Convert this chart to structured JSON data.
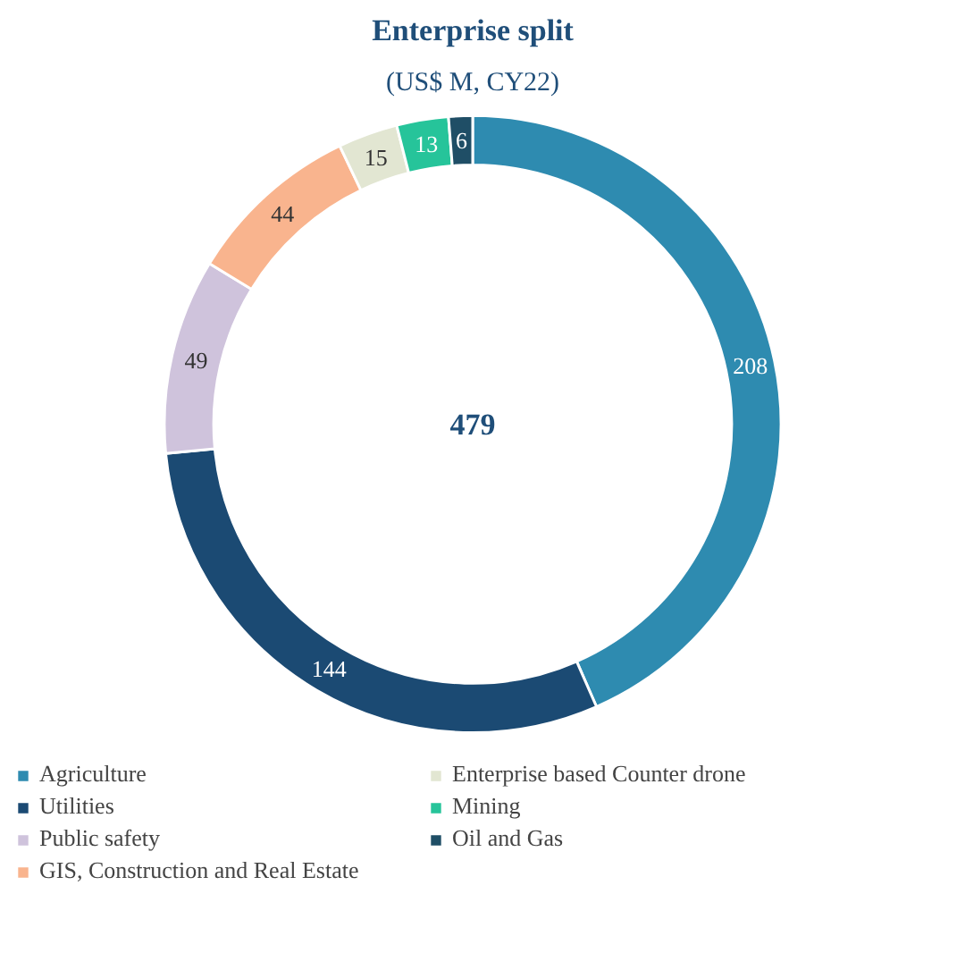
{
  "chart_data": {
    "type": "donut",
    "title": "Enterprise split",
    "subtitle": "(US$ M, CY22)",
    "categories": [
      "Agriculture",
      "Utilities",
      "Public safety",
      "GIS, Construction and Real Estate",
      "Enterprise based Counter drone",
      "Mining",
      "Oil and Gas"
    ],
    "values": [
      208,
      144,
      49,
      44,
      15,
      13,
      6
    ],
    "colors": [
      "#2e8bb0",
      "#1b4a73",
      "#cfc3dc",
      "#f9b48e",
      "#e2e6d2",
      "#26c49a",
      "#1f4e66"
    ],
    "annotations": [
      "479"
    ],
    "data_labels": true,
    "legend": "bottom"
  }
}
